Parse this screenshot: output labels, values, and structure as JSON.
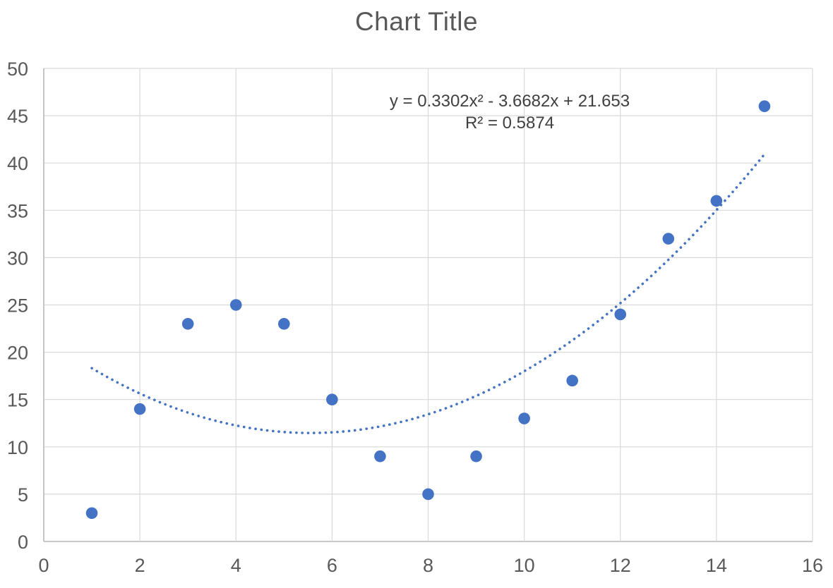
{
  "title": "Chart Title",
  "annotation": {
    "equation": "y = 0.3302x² - 3.6682x + 21.653",
    "r_squared": "R² = 0.5874"
  },
  "chart_data": {
    "type": "scatter",
    "title": "Chart Title",
    "xlabel": "",
    "ylabel": "",
    "x": [
      1,
      2,
      3,
      4,
      5,
      6,
      7,
      8,
      9,
      10,
      11,
      12,
      13,
      14,
      15
    ],
    "y": [
      3,
      14,
      23,
      25,
      23,
      15,
      9,
      5,
      9,
      13,
      17,
      24,
      32,
      36,
      46
    ],
    "xlim": [
      0,
      16
    ],
    "ylim": [
      0,
      50
    ],
    "x_tick_step": 2,
    "y_tick_step": 5,
    "x_tick_labels": [
      "0",
      "2",
      "4",
      "6",
      "8",
      "10",
      "12",
      "14",
      "16"
    ],
    "y_tick_labels": [
      "0",
      "5",
      "10",
      "15",
      "20",
      "25",
      "30",
      "35",
      "40",
      "45",
      "50"
    ],
    "grid": true,
    "legend": "none",
    "trendline": {
      "type": "polynomial",
      "order": 2,
      "coefficients": {
        "a": 0.3302,
        "b": -3.6682,
        "c": 21.653
      },
      "r2": 0.5874,
      "x_start": 1,
      "x_end": 15,
      "line_style": "dotted"
    },
    "colors": {
      "marker": "#4472C4",
      "trendline": "#4472C4",
      "gridline": "#D9D9D9",
      "axis_line": "#BFBFBF",
      "tick_label": "#595959",
      "title_text": "#595959",
      "annotation_text": "#404040",
      "background": "#FFFFFF"
    }
  }
}
